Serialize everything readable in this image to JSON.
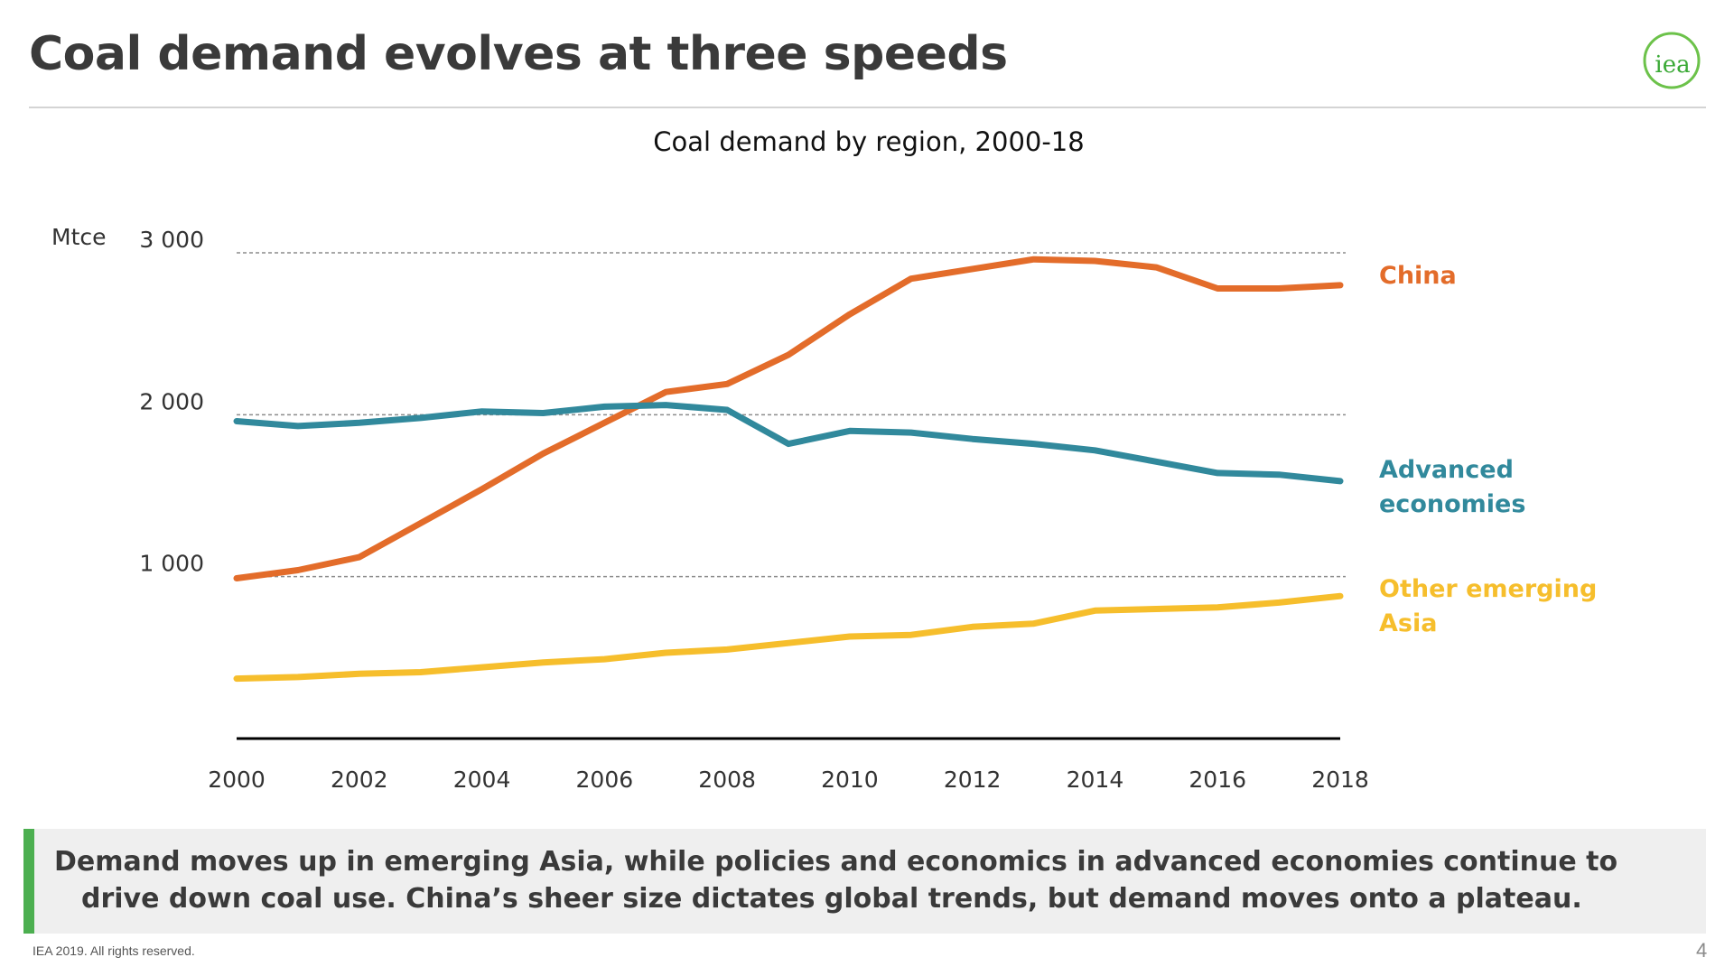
{
  "slide": {
    "title": "Coal demand evolves at three speeds",
    "callout_line1": "Demand moves up in emerging Asia, while policies and economics in advanced economies continue to",
    "callout_line2": "drive down coal use. China’s sheer size dictates global trends, but demand moves onto a plateau.",
    "footer": "IEA 2019. All rights reserved.",
    "page_number": "4",
    "logo_text": "iea",
    "colors": {
      "title": "#3a3a3a",
      "accent_green": "#4caf50",
      "callout_bg": "#efefef"
    }
  },
  "chart_data": {
    "type": "line",
    "title": "Coal demand by region, 2000-18",
    "ylabel": "Mtce",
    "xlabel": "",
    "x": [
      2000,
      2001,
      2002,
      2003,
      2004,
      2005,
      2006,
      2007,
      2008,
      2009,
      2010,
      2011,
      2012,
      2013,
      2014,
      2015,
      2016,
      2017,
      2018
    ],
    "xticks": [
      "2000",
      "2002",
      "2004",
      "2006",
      "2008",
      "2010",
      "2012",
      "2014",
      "2016",
      "2018"
    ],
    "xtick_values": [
      2000,
      2002,
      2004,
      2006,
      2008,
      2010,
      2012,
      2014,
      2016,
      2018
    ],
    "yticks": [
      "1 000",
      "2 000",
      "3 000"
    ],
    "ytick_values": [
      1000,
      2000,
      3000
    ],
    "ylim": [
      0,
      3000
    ],
    "xlim": [
      2000,
      2018
    ],
    "grid": "horizontal dashed",
    "series": [
      {
        "name": "China",
        "label_lines": [
          "China"
        ],
        "color": "#e36c2a",
        "values": [
          990,
          1040,
          1120,
          1330,
          1540,
          1760,
          1950,
          2140,
          2190,
          2370,
          2620,
          2840,
          2900,
          2960,
          2950,
          2910,
          2780,
          2780,
          2800
        ]
      },
      {
        "name": "Advanced economies",
        "label_lines": [
          "Advanced",
          "economies"
        ],
        "color": "#31899c",
        "values": [
          1960,
          1930,
          1950,
          1980,
          2020,
          2010,
          2050,
          2060,
          2030,
          1820,
          1900,
          1890,
          1850,
          1820,
          1780,
          1710,
          1640,
          1630,
          1590
        ]
      },
      {
        "name": "Other emerging Asia",
        "label_lines": [
          "Other emerging",
          "Asia"
        ],
        "color": "#f6be2c",
        "values": [
          370,
          380,
          400,
          410,
          440,
          470,
          490,
          530,
          550,
          590,
          630,
          640,
          690,
          710,
          790,
          800,
          810,
          840,
          880
        ]
      }
    ]
  }
}
